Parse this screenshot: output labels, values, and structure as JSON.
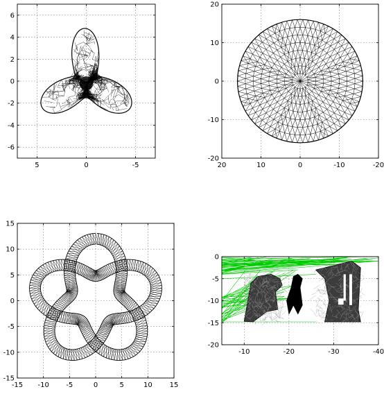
{
  "chart_data": [
    {
      "type": "line",
      "title": "",
      "xlabel": "",
      "ylabel": "",
      "xlim": [
        7,
        -7
      ],
      "ylim": [
        -7,
        7
      ],
      "x_ticks": [
        5,
        0,
        -5
      ],
      "y_ticks": [
        6,
        4,
        2,
        0,
        -2,
        -4,
        -6
      ],
      "x_tick_labels": [
        "5",
        "0",
        "-5"
      ],
      "y_tick_labels": [
        "6",
        "4",
        "2",
        "0",
        "-2",
        "-4",
        "-6"
      ],
      "grid": true,
      "series": [
        {
          "shape": "three-blade propeller wireframe mesh",
          "blades": 3,
          "hub_radius": 1.2,
          "tip_radius": 5,
          "color": "#000000"
        }
      ]
    },
    {
      "type": "line",
      "title": "",
      "xlabel": "",
      "ylabel": "",
      "xlim": [
        20,
        -20
      ],
      "ylim": [
        -20,
        20
      ],
      "x_ticks": [
        20,
        10,
        0,
        -10,
        -20
      ],
      "y_ticks": [
        20,
        10,
        0,
        -10,
        -20
      ],
      "x_tick_labels": [
        "20",
        "10",
        "0",
        "-10",
        "-20"
      ],
      "y_tick_labels": [
        "20",
        "10",
        "0",
        "-10",
        "-20"
      ],
      "grid": true,
      "series": [
        {
          "shape": "triangulated disk wireframe mesh",
          "center": [
            0,
            0
          ],
          "radius": 16,
          "color": "#000000"
        }
      ]
    },
    {
      "type": "line",
      "title": "",
      "xlabel": "",
      "ylabel": "",
      "xlim": [
        -15,
        15
      ],
      "ylim": [
        -15,
        15
      ],
      "x_ticks": [
        -15,
        -10,
        -5,
        0,
        5,
        10,
        15
      ],
      "y_ticks": [
        15,
        10,
        5,
        0,
        -5,
        -10,
        -15
      ],
      "x_tick_labels": [
        "-15",
        "-10",
        "-5",
        "0",
        "5",
        "10",
        "15"
      ],
      "y_tick_labels": [
        "15",
        "10",
        "5",
        "0",
        "-5",
        "-10",
        "-15"
      ],
      "grid": true,
      "series": [
        {
          "shape": "five-lobed knot tube wireframe mesh",
          "lobes": 5,
          "mean_radius": 8.4,
          "amplitude": 3.6,
          "color": "#000000"
        }
      ]
    },
    {
      "type": "line",
      "title": "",
      "xlabel": "",
      "ylabel": "",
      "xlim": [
        -5,
        -40
      ],
      "ylim": [
        -20,
        0
      ],
      "x_ticks": [
        -10,
        -20,
        -30,
        -40
      ],
      "y_ticks": [
        0,
        -5,
        -10,
        -15,
        -20
      ],
      "x_tick_labels": [
        "-10",
        "-20",
        "-30",
        "-40"
      ],
      "y_tick_labels": [
        "0",
        "-5",
        "-10",
        "-15",
        "-20"
      ],
      "grid": true,
      "series": [
        {
          "shape": "green wireframe envelope lines",
          "color": "#00cc00"
        },
        {
          "shape": "black wireframe mesh parts",
          "parts": 3,
          "color": "#000000"
        }
      ]
    }
  ]
}
